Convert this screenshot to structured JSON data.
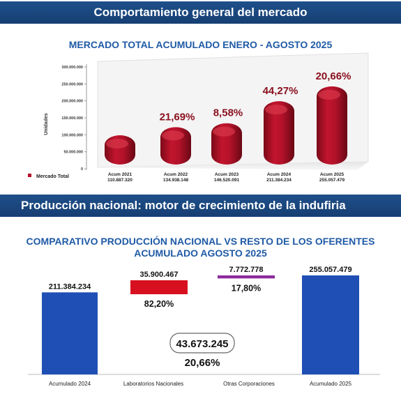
{
  "banner1": "Comportamiento general del mercado",
  "banner2": "Producción nacional: motor de crecimiento de la indufiria",
  "chart_data": [
    {
      "type": "bar",
      "title": "MERCADO TOTAL ACUMULADO ENERO - AGOSTO 2025",
      "ylabel": "Unidades",
      "ylim": [
        0,
        300000000
      ],
      "y_ticks": [
        "0",
        "50.000.000",
        "100.000.000",
        "150.000.000",
        "200.000.000",
        "250.000.000",
        "300.000.000"
      ],
      "legend": "Mercado Total",
      "legend_position": "left",
      "grid": false,
      "color": "#b3122a",
      "categories": [
        "Acum 2021",
        "Acum 2022",
        "Acum 2023",
        "Acum 2024",
        "Acum 2025"
      ],
      "value_labels": [
        "110.887.320",
        "134.938.148",
        "146.520.091",
        "211.384.234",
        "255.057.479"
      ],
      "values": [
        110887320,
        134938148,
        146520091,
        211384234,
        255057479
      ],
      "growth_labels": [
        "",
        "21,69%",
        "8,58%",
        "44,27%",
        "20,66%"
      ]
    },
    {
      "type": "bar",
      "subtype": "waterfall",
      "title_line1": "COMPARATIVO PRODUCCIÓN NACIONAL VS RESTO DE LOS OFERENTES",
      "title_line2": "ACUMULADO AGOSTO   2025",
      "categories": [
        "Acumulado 2024",
        "Laboratorios Nacionales",
        "Otras Corporaciones",
        "Acumulado 2025"
      ],
      "values": [
        211384234,
        35900467,
        7772778,
        255057479
      ],
      "value_labels": [
        "211.384.234",
        "35.900.467",
        "7.772.778",
        "255.057.479"
      ],
      "share_labels": [
        "",
        "82,20%",
        "17,80%",
        ""
      ],
      "colors": [
        "#1f4fb5",
        "#d7101f",
        "#8c2a9e",
        "#1f4fb5"
      ],
      "total_increase": "43.673.245",
      "total_increase_pct": "20,66%"
    }
  ]
}
